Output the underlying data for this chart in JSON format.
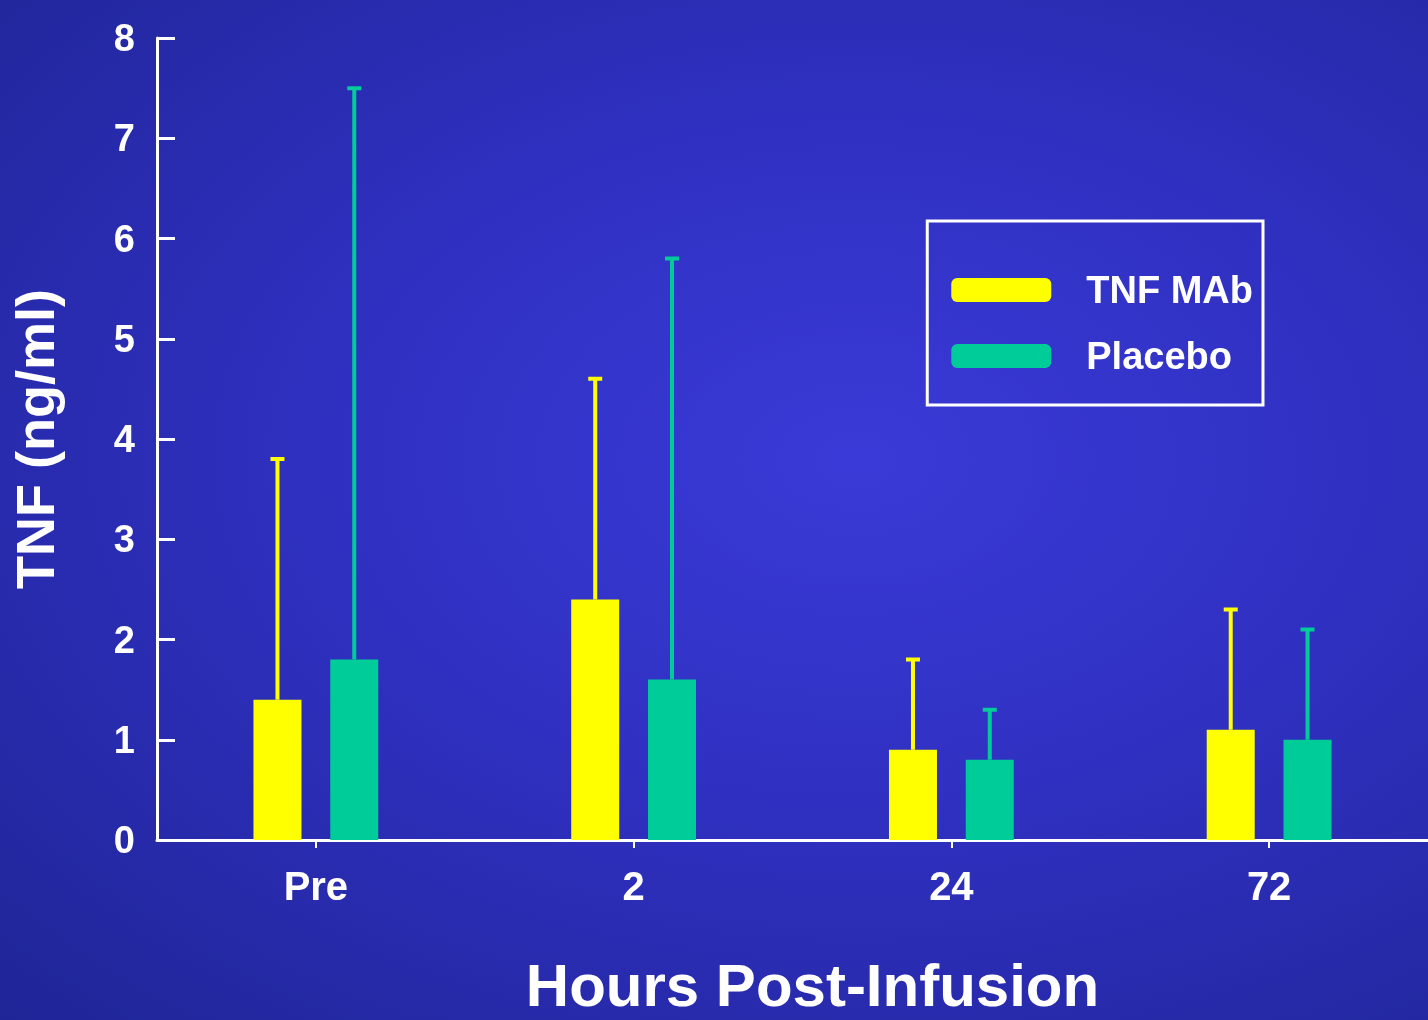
{
  "chart_data": {
    "type": "bar",
    "xlabel": "Hours Post-Infusion",
    "ylabel": "TNF (ng/ml)",
    "categories": [
      "Pre",
      "2",
      "24",
      "72"
    ],
    "series": [
      {
        "name": "TNF MAb",
        "color": "#ffff00",
        "values": [
          1.4,
          2.4,
          0.9,
          1.1
        ],
        "errors": [
          [
            1.4,
            3.8
          ],
          [
            2.4,
            4.6
          ],
          [
            0.9,
            1.8
          ],
          [
            1.1,
            2.3
          ]
        ]
      },
      {
        "name": "Placebo",
        "color": "#00cc99",
        "values": [
          1.8,
          1.6,
          0.8,
          1.0
        ],
        "errors": [
          [
            1.8,
            7.5
          ],
          [
            1.6,
            5.8
          ],
          [
            0.8,
            1.3
          ],
          [
            1.0,
            2.1
          ]
        ]
      }
    ],
    "ylim": [
      0,
      8
    ],
    "yticks": [
      0,
      1,
      2,
      3,
      4,
      5,
      6,
      7,
      8
    ],
    "grid": false,
    "legend": "top right"
  }
}
